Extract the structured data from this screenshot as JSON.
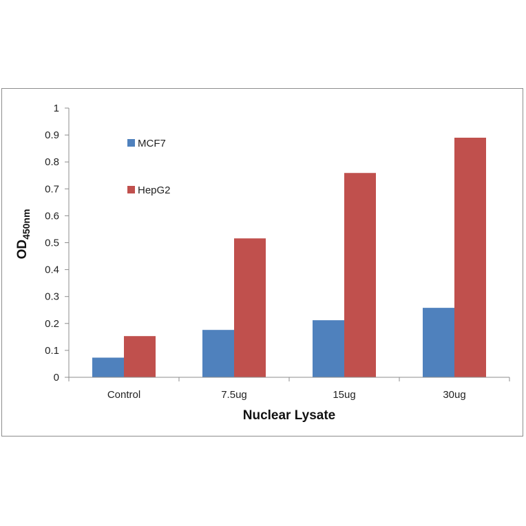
{
  "chart_data": {
    "type": "bar",
    "categories": [
      "Control",
      "7.5ug",
      "15ug",
      "30ug"
    ],
    "series": [
      {
        "name": "MCF7",
        "color": "#4f81bd",
        "values": [
          0.073,
          0.176,
          0.212,
          0.258
        ]
      },
      {
        "name": "HepG2",
        "color": "#c0504d",
        "values": [
          0.153,
          0.516,
          0.759,
          0.89
        ]
      }
    ],
    "xlabel": "Nuclear Lysate",
    "ylabel_main": "OD",
    "ylabel_sub": "450nm",
    "ylim": [
      0,
      1
    ],
    "yticks": [
      "0",
      "0.1",
      "0.2",
      "0.3",
      "0.4",
      "0.5",
      "0.6",
      "0.7",
      "0.8",
      "0.9",
      "1"
    ],
    "grid": false,
    "legend_position": "top-left"
  }
}
